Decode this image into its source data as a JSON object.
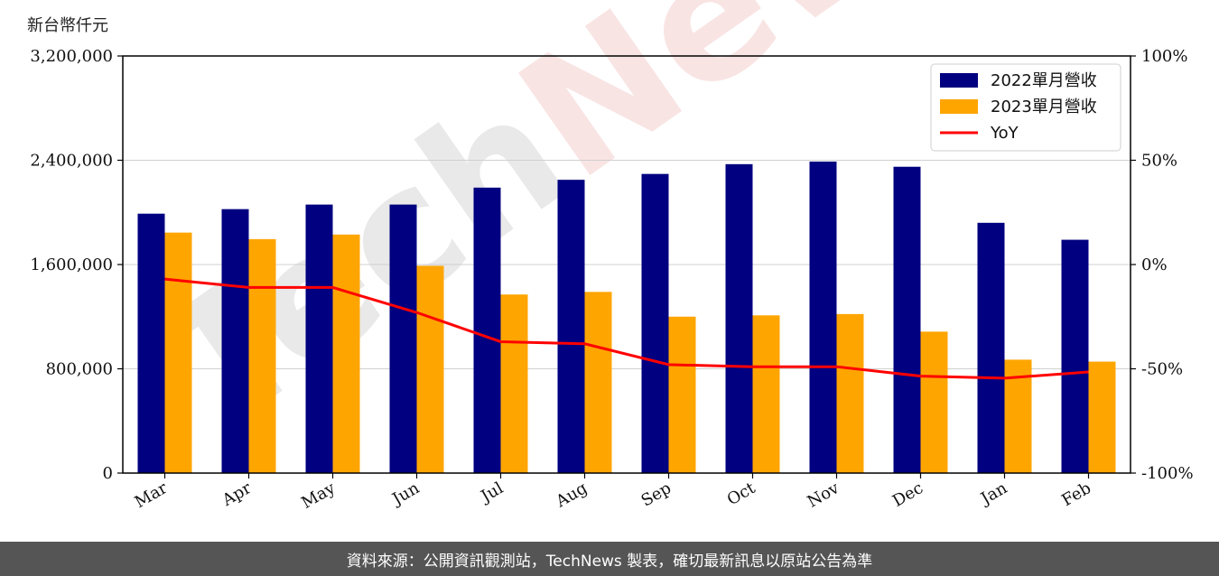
{
  "unit_label": "新台幣仟元",
  "footer_text": "資料來源：公開資訊觀測站，TechNews 製表，確切最新訊息以原站公告為準",
  "watermark": "TechNews",
  "colors": {
    "series2022": "#000080",
    "series2023": "#ffa500",
    "yoy": "#ff0000",
    "footer_bg": "#555555"
  },
  "chart_data": {
    "type": "bar",
    "categories": [
      "Mar",
      "Apr",
      "May",
      "Jun",
      "Jul",
      "Aug",
      "Sep",
      "Oct",
      "Nov",
      "Dec",
      "Jan",
      "Feb"
    ],
    "series": [
      {
        "name": "2022單月營收",
        "values": [
          1990000,
          2025000,
          2060000,
          2060000,
          2190000,
          2250000,
          2295000,
          2370000,
          2390000,
          2350000,
          1920000,
          1790000
        ]
      },
      {
        "name": "2023單月營收",
        "values": [
          1845000,
          1795000,
          1830000,
          1590000,
          1370000,
          1390000,
          1200000,
          1210000,
          1220000,
          1085000,
          870000,
          855000
        ]
      }
    ],
    "line_series": {
      "name": "YoY",
      "axis": "right",
      "values": [
        -7,
        -11,
        -11,
        -23,
        -37,
        -38,
        -48,
        -49,
        -49,
        -53.5,
        -54.5,
        -51.5
      ]
    },
    "yticks": [
      "0",
      "800,000",
      "1,600,000",
      "2,400,000",
      "3,200,000"
    ],
    "ylim": [
      0,
      3200000
    ],
    "y2ticks": [
      "-100%",
      "-50%",
      "0%",
      "50%",
      "100%"
    ],
    "y2lim": [
      -100,
      100
    ],
    "legend_position": "top-right",
    "grid": "horizontal"
  }
}
